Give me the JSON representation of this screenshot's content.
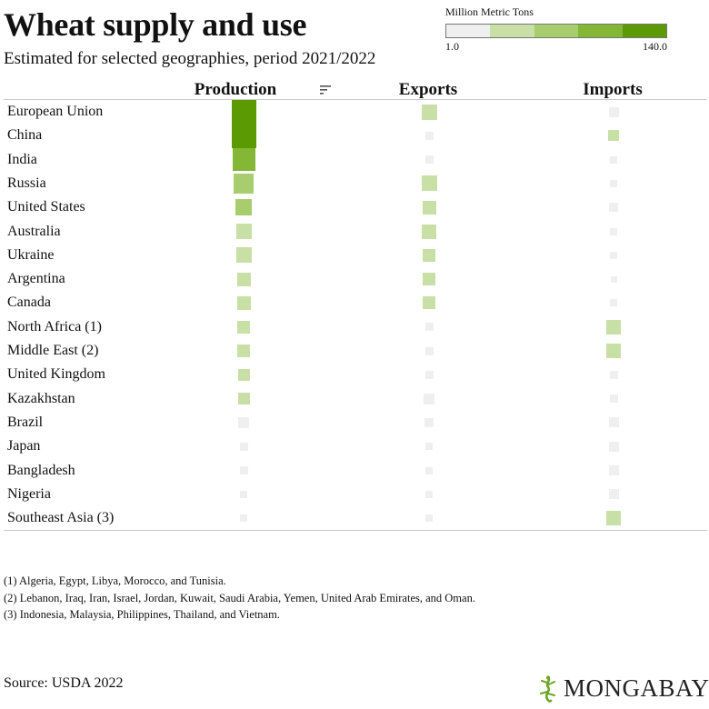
{
  "header": {
    "title": "Wheat supply and use",
    "subtitle": "Estimated for selected geographies, period 2021/2022"
  },
  "legend": {
    "title": "Million Metric Tons",
    "min_label": "1.0",
    "max_label": "140.0",
    "colors": [
      "#efefef",
      "#c8dfa6",
      "#a8cd6f",
      "#84b735",
      "#5c9a04"
    ]
  },
  "columns": {
    "production": "Production",
    "exports": "Exports",
    "imports": "Imports"
  },
  "footnotes": [
    "(1) Algeria, Egypt, Libya, Morocco, and Tunisia.",
    "(2) Lebanon, Iraq, Iran, Israel, Jordan, Kuwait, Saudi Arabia, Yemen, United Arab Emirates, and Oman.",
    "(3) Indonesia, Malaysia, Philippines, Thailand, and Vietnam."
  ],
  "source": "Source: USDA 2022",
  "brand": "MONGABAY",
  "chart_data": {
    "type": "table",
    "title": "Wheat supply and use",
    "unit": "Million Metric Tons",
    "color_scale": [
      1.0,
      140.0
    ],
    "sorted_by": "Production",
    "rows": [
      {
        "country": "European Union",
        "production": 138,
        "exports": 32,
        "imports": 5
      },
      {
        "country": "China",
        "production": 137,
        "exports": 1,
        "imports": 10
      },
      {
        "country": "India",
        "production": 110,
        "exports": 2,
        "imports": 0.1
      },
      {
        "country": "Russia",
        "production": 76,
        "exports": 33,
        "imports": 0.3
      },
      {
        "country": "United States",
        "production": 45,
        "exports": 22,
        "imports": 2.6
      },
      {
        "country": "Australia",
        "production": 36,
        "exports": 27,
        "imports": 0.2
      },
      {
        "country": "Ukraine",
        "production": 33,
        "exports": 19,
        "imports": 0.1
      },
      {
        "country": "Argentina",
        "production": 22,
        "exports": 17,
        "imports": 0.01
      },
      {
        "country": "Canada",
        "production": 22,
        "exports": 15,
        "imports": 0.6
      },
      {
        "country": "North Africa (1)",
        "production": 18,
        "exports": 1,
        "imports": 29
      },
      {
        "country": "Middle East (2)",
        "production": 17,
        "exports": 1,
        "imports": 27
      },
      {
        "country": "United Kingdom",
        "production": 14,
        "exports": 1,
        "imports": 2
      },
      {
        "country": "Kazakhstan",
        "production": 12,
        "exports": 8,
        "imports": 1
      },
      {
        "country": "Brazil",
        "production": 8,
        "exports": 3,
        "imports": 6
      },
      {
        "country": "Japan",
        "production": 1,
        "exports": 0.3,
        "imports": 6
      },
      {
        "country": "Bangladesh",
        "production": 1,
        "exports": 0.1,
        "imports": 7
      },
      {
        "country": "Nigeria",
        "production": 0.1,
        "exports": 0.6,
        "imports": 6
      },
      {
        "country": "Southeast Asia (3)",
        "production": 0.2,
        "exports": 0.3,
        "imports": 26
      }
    ]
  }
}
